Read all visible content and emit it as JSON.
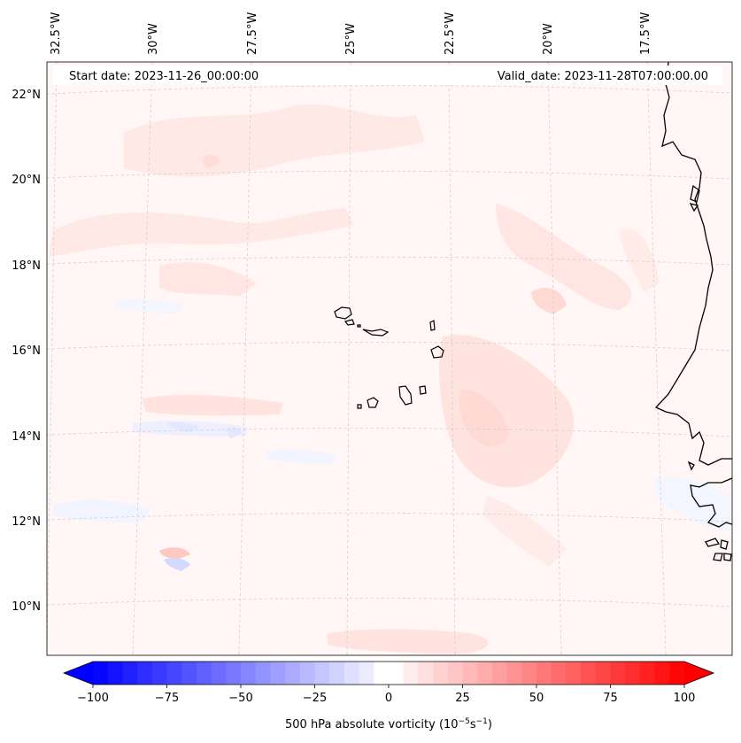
{
  "map": {
    "start_date_text": "Start date: 2023-11-26_00:00:00",
    "valid_date_text": "Valid_date: 2023-11-28T07:00:00.00",
    "lon_labels": [
      "32.5°W",
      "30°W",
      "27.5°W",
      "25°W",
      "22.5°W",
      "20°W",
      "17.5°W"
    ],
    "lat_labels": [
      "22°N",
      "20°N",
      "18°N",
      "16°N",
      "14°N",
      "12°N",
      "10°N"
    ],
    "colors": {
      "background_tint": "#fff6f5",
      "positive_tint": "#ffe6e3",
      "negative_tint": "#f1f3ff",
      "coast": "#000000",
      "grid": "#cfcfcf"
    }
  },
  "colorbar": {
    "ticks": [
      "−100",
      "−75",
      "−50",
      "−25",
      "0",
      "25",
      "50",
      "75",
      "100"
    ],
    "label_prefix": "500 hPa absolute vorticity (10",
    "label_exp1": "−5",
    "label_mid": "s",
    "label_exp2": "−1",
    "label_suffix": ")",
    "min": -100,
    "max": 100,
    "step": 5,
    "colors": {
      "neg_end": "#0000ff",
      "mid": "#ffffff",
      "pos_end": "#ff0000"
    }
  }
}
